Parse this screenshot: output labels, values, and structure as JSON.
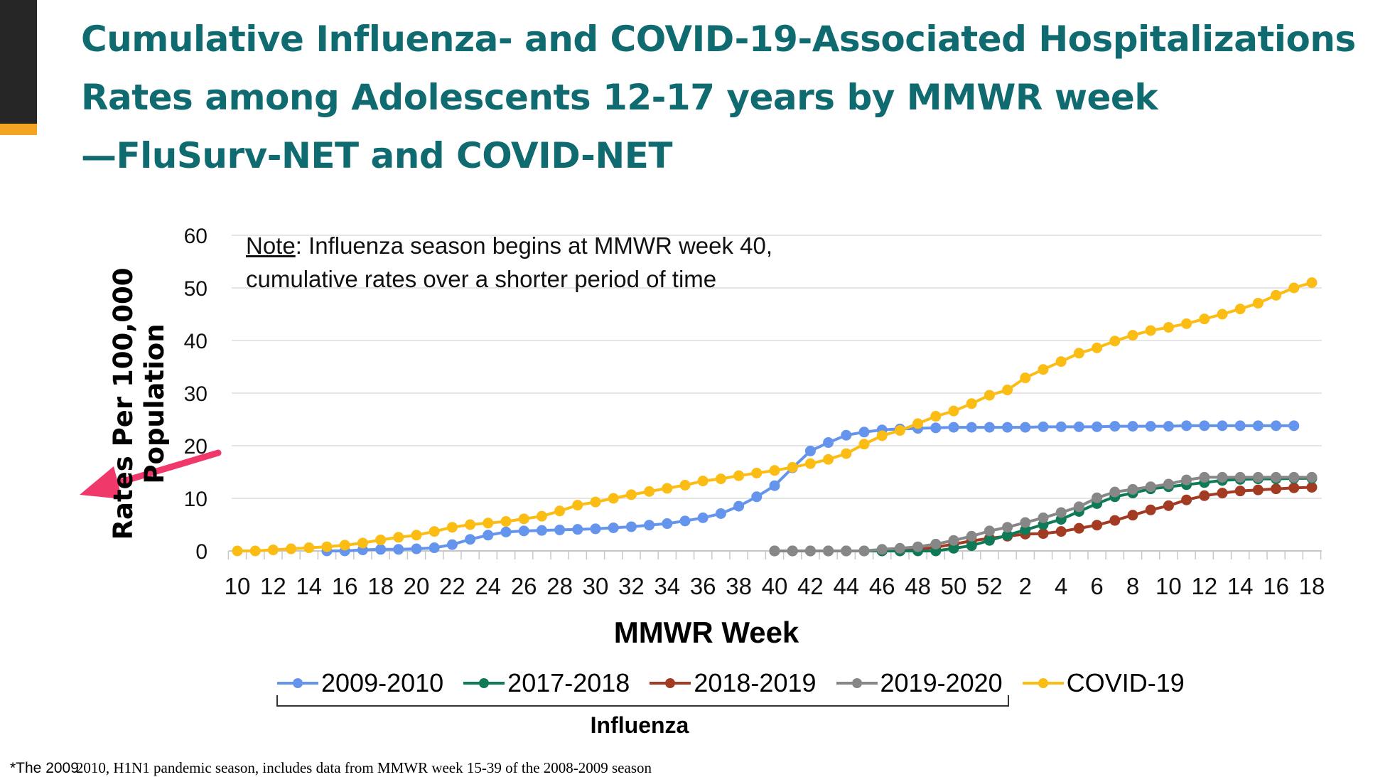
{
  "title": {
    "line1": "Cumulative Influenza- and COVID-19-Associated Hospitalizations",
    "line2": "Rates among Adolescents 12-17 years by MMWR week",
    "line3": "—FluSurv-NET and COVID-NET"
  },
  "note": {
    "label": "Note",
    "line1_rest": ": Influenza season begins at MMWR week 40,",
    "line2": "cumulative rates over a shorter period of time"
  },
  "legend_group_label": "Influenza",
  "footnote": {
    "part1": "*The 2009",
    "part2": "2010, H1N1 pandemic season, includes data from MMWR week 15-39 of the 2008-2009 season"
  },
  "colors": {
    "title": "#0f6b70",
    "annotation_arrow": "#f0386b",
    "accent_bar": "#f3a421"
  },
  "chart_data": {
    "type": "line",
    "title": "Cumulative Influenza- and COVID-19-Associated Hospitalizations Rates among Adolescents 12-17 years by MMWR week —FluSurv-NET and COVID-NET",
    "xlabel": "MMWR Week",
    "ylabel_lines": [
      "Rates Per 100,000",
      "Population"
    ],
    "ylim": [
      0,
      60
    ],
    "y_ticks": [
      "0",
      "10",
      "20",
      "30",
      "40",
      "50",
      "60"
    ],
    "grid": "horizontal",
    "legend_position": "bottom",
    "x": [
      10,
      11,
      12,
      13,
      14,
      15,
      16,
      17,
      18,
      19,
      20,
      21,
      22,
      23,
      24,
      25,
      26,
      27,
      28,
      29,
      30,
      31,
      32,
      33,
      34,
      35,
      36,
      37,
      38,
      39,
      40,
      41,
      42,
      43,
      44,
      45,
      46,
      47,
      48,
      49,
      50,
      51,
      52,
      1,
      2,
      3,
      4,
      5,
      6,
      7,
      8,
      9,
      10,
      11,
      12,
      13,
      14,
      15,
      16,
      17,
      18
    ],
    "x_tick_labels": [
      "10",
      "12",
      "14",
      "16",
      "18",
      "20",
      "22",
      "24",
      "26",
      "28",
      "30",
      "32",
      "34",
      "36",
      "38",
      "40",
      "42",
      "44",
      "46",
      "48",
      "50",
      "52",
      "2",
      "4",
      "6",
      "8",
      "10",
      "12",
      "14",
      "16",
      "18"
    ],
    "series": [
      {
        "name": "2018-2019",
        "color": "#a23b22",
        "values": [
          null,
          null,
          null,
          null,
          null,
          null,
          null,
          null,
          null,
          null,
          null,
          null,
          null,
          null,
          null,
          null,
          null,
          null,
          null,
          null,
          null,
          null,
          null,
          null,
          null,
          null,
          null,
          null,
          null,
          null,
          0,
          0,
          0,
          0,
          0,
          0,
          0,
          0,
          0.3,
          0.7,
          1.3,
          1.9,
          2.4,
          2.8,
          3.2,
          3.3,
          3.7,
          4.3,
          4.9,
          5.8,
          6.8,
          7.8,
          8.6,
          9.7,
          10.5,
          11.0,
          11.4,
          11.6,
          11.8,
          12.0,
          12.1
        ]
      },
      {
        "name": "2017-2018",
        "color": "#0f7a57",
        "values": [
          null,
          null,
          null,
          null,
          null,
          null,
          null,
          null,
          null,
          null,
          null,
          null,
          null,
          null,
          null,
          null,
          null,
          null,
          null,
          null,
          null,
          null,
          null,
          null,
          null,
          null,
          null,
          null,
          null,
          null,
          0,
          0,
          0,
          0,
          0,
          0,
          0,
          0,
          0,
          0,
          0.5,
          1.0,
          2.0,
          3.0,
          4.0,
          5.0,
          6.0,
          7.5,
          9.0,
          10.3,
          11.0,
          11.8,
          12.2,
          12.6,
          13.0,
          13.4,
          13.6,
          13.7,
          13.7,
          13.8,
          13.8
        ]
      },
      {
        "name": "2019-2020",
        "color": "#878787",
        "values": [
          null,
          null,
          null,
          null,
          null,
          null,
          null,
          null,
          null,
          null,
          null,
          null,
          null,
          null,
          null,
          null,
          null,
          null,
          null,
          null,
          null,
          null,
          null,
          null,
          null,
          null,
          null,
          null,
          null,
          null,
          0,
          0,
          0,
          0,
          0,
          0,
          0.3,
          0.5,
          0.8,
          1.3,
          2.0,
          2.8,
          3.8,
          4.5,
          5.4,
          6.3,
          7.3,
          8.4,
          10.1,
          11.2,
          11.7,
          12.2,
          12.7,
          13.5,
          14.0,
          14.0,
          14.0,
          14.0,
          14.0,
          14.0,
          14.0
        ]
      },
      {
        "name": "2009-2010",
        "color": "#6494ec",
        "values": [
          null,
          null,
          null,
          null,
          null,
          0,
          0,
          0.2,
          0.3,
          0.3,
          0.4,
          0.6,
          1.2,
          2.2,
          3.0,
          3.6,
          3.8,
          3.9,
          4.0,
          4.1,
          4.2,
          4.4,
          4.6,
          4.9,
          5.2,
          5.7,
          6.3,
          7.1,
          8.5,
          10.3,
          12.4,
          15.8,
          19.0,
          20.6,
          22.0,
          22.6,
          23.0,
          23.2,
          23.3,
          23.4,
          23.5,
          23.5,
          23.5,
          23.5,
          23.5,
          23.6,
          23.6,
          23.6,
          23.6,
          23.7,
          23.7,
          23.7,
          23.7,
          23.8,
          23.8,
          23.8,
          23.8,
          23.8,
          23.8,
          23.8,
          null
        ]
      },
      {
        "name": "COVID-19",
        "color": "#fbbc14",
        "values": [
          0,
          0,
          0.2,
          0.4,
          0.6,
          0.8,
          1.1,
          1.5,
          2.1,
          2.6,
          3.0,
          3.7,
          4.5,
          5.0,
          5.3,
          5.6,
          6.1,
          6.6,
          7.6,
          8.7,
          9.3,
          10.0,
          10.7,
          11.3,
          11.9,
          12.5,
          13.3,
          13.7,
          14.3,
          14.8,
          15.3,
          15.9,
          16.6,
          17.4,
          18.5,
          20.3,
          21.9,
          22.9,
          24.2,
          25.6,
          26.6,
          28.0,
          29.6,
          30.6,
          32.9,
          34.5,
          36.0,
          37.6,
          38.6,
          39.9,
          41.0,
          41.9,
          42.5,
          43.2,
          44.1,
          45.0,
          46.0,
          47.1,
          48.6,
          50.0,
          51.0
        ]
      }
    ],
    "legend": [
      {
        "name": "2009-2010",
        "color": "#6494ec"
      },
      {
        "name": "2017-2018",
        "color": "#0f7a57"
      },
      {
        "name": "2018-2019",
        "color": "#a23b22"
      },
      {
        "name": "2019-2020",
        "color": "#878787"
      },
      {
        "name": "COVID-19",
        "color": "#fbbc14"
      }
    ]
  }
}
